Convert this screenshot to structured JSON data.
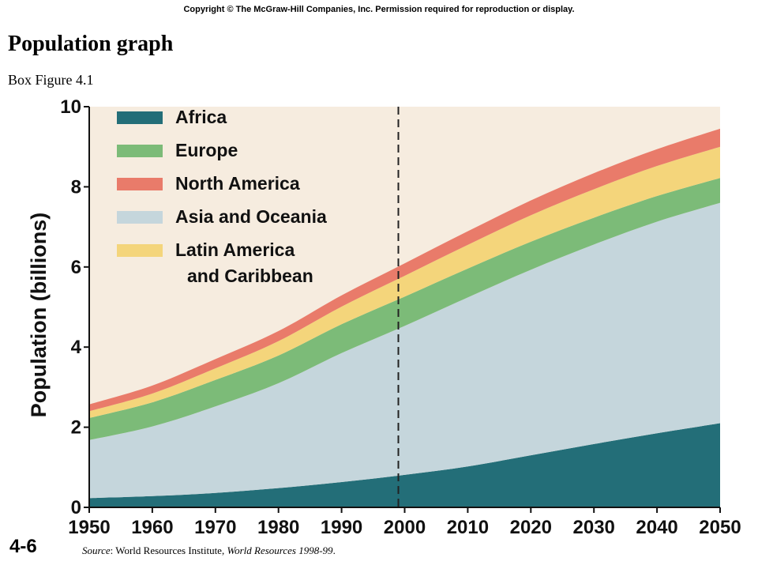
{
  "header": {
    "copyright": "Copyright © The McGraw-Hill Companies, Inc. Permission required for reproduction or display.",
    "title": "Population graph",
    "subtitle": "Box Figure 4.1"
  },
  "footer": {
    "slide_number": "4-6",
    "source_prefix": "Source",
    "source_mid": ": World Resources Institute, ",
    "source_pub": "World Resources 1998-99",
    "source_end": "."
  },
  "colors": {
    "background": "#f6ecdf",
    "africa": "#236e78",
    "asia_oceania": "#c5d6dc",
    "europe": "#7cbb78",
    "latin_america": "#f4d57b",
    "north_america": "#e97b6a"
  },
  "chart_data": {
    "type": "area",
    "stacked": true,
    "ylabel": "Population (billions)",
    "ylim": [
      0,
      10
    ],
    "yticks": [
      0,
      2,
      4,
      6,
      8,
      10
    ],
    "xlim": [
      1950,
      2050
    ],
    "xticks": [
      1950,
      1960,
      1970,
      1980,
      1990,
      2000,
      2010,
      2020,
      2030,
      2040,
      2050
    ],
    "x": [
      1950,
      1960,
      1970,
      1980,
      1990,
      2000,
      2010,
      2020,
      2030,
      2040,
      2050
    ],
    "series": [
      {
        "name": "Africa",
        "color": "#236e78",
        "values": [
          0.23,
          0.28,
          0.36,
          0.48,
          0.63,
          0.81,
          1.02,
          1.3,
          1.58,
          1.85,
          2.1
        ]
      },
      {
        "name": "Asia and Oceania",
        "color": "#c5d6dc",
        "values": [
          1.45,
          1.74,
          2.16,
          2.62,
          3.22,
          3.72,
          4.22,
          4.63,
          4.98,
          5.28,
          5.5
        ]
      },
      {
        "name": "Europe",
        "color": "#7cbb78",
        "values": [
          0.55,
          0.6,
          0.66,
          0.69,
          0.72,
          0.73,
          0.72,
          0.7,
          0.67,
          0.64,
          0.62
        ]
      },
      {
        "name": "Latin America and Caribbean",
        "color": "#f4d57b",
        "values": [
          0.17,
          0.22,
          0.29,
          0.36,
          0.44,
          0.52,
          0.59,
          0.66,
          0.71,
          0.75,
          0.78
        ]
      },
      {
        "name": "North America",
        "color": "#e97b6a",
        "values": [
          0.17,
          0.2,
          0.23,
          0.25,
          0.28,
          0.31,
          0.34,
          0.37,
          0.4,
          0.42,
          0.45
        ]
      }
    ],
    "legend": {
      "placement": "top-left",
      "entries": [
        {
          "label": "Africa",
          "color": "#236e78"
        },
        {
          "label": "Europe",
          "color": "#7cbb78"
        },
        {
          "label": "North America",
          "color": "#e97b6a"
        },
        {
          "label": "Asia and Oceania",
          "color": "#c5d6dc"
        },
        {
          "label_line1": "Latin America",
          "label_line2": "and Caribbean",
          "color": "#f4d57b"
        }
      ]
    },
    "marker_line": {
      "x": 1999,
      "style": "dashed"
    },
    "grid": false
  }
}
